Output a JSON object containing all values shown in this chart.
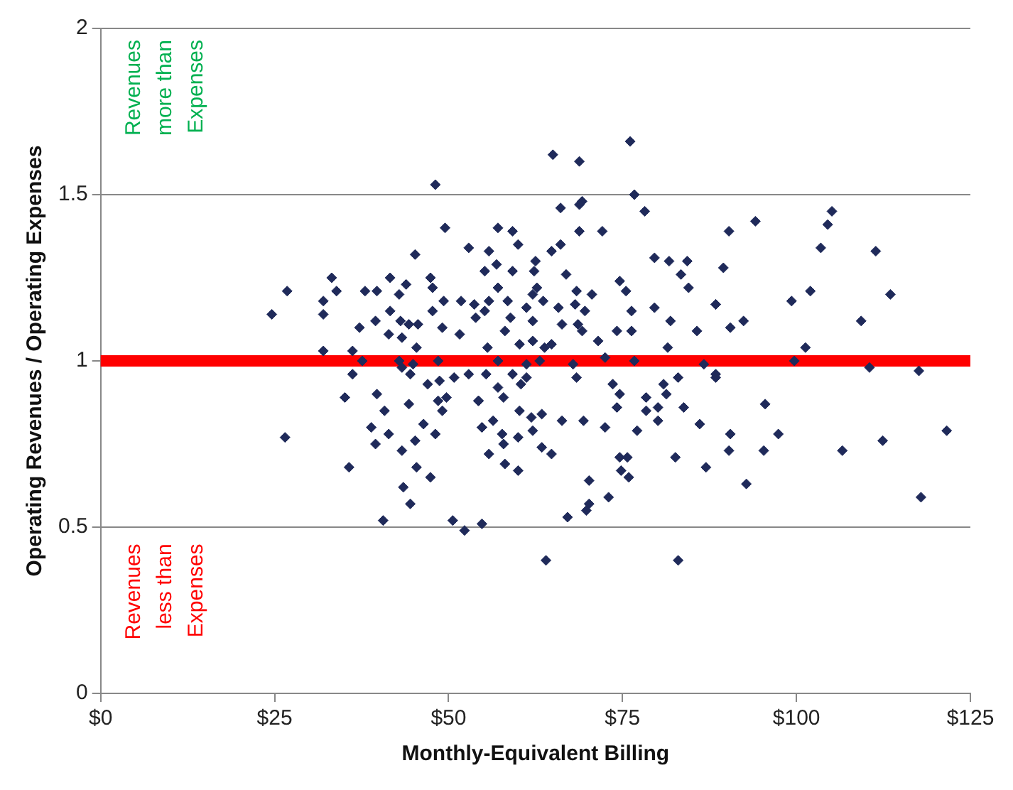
{
  "chart_data": {
    "type": "scatter",
    "xlabel": "Monthly-Equivalent Billing",
    "ylabel": "Operating Revenues / Operating Expenses",
    "annotations": [
      "Revenues more than Expenses",
      "Revenues less than Expenses"
    ],
    "xlim": [
      0,
      125
    ],
    "xticks": [
      {
        "value": 0,
        "label": "$0"
      },
      {
        "value": 25,
        "label": "$25"
      },
      {
        "value": 50,
        "label": "$50"
      },
      {
        "value": 75,
        "label": "$75"
      },
      {
        "value": 100,
        "label": "$100"
      },
      {
        "value": 125,
        "label": "$125"
      }
    ],
    "ylim": [
      0,
      2
    ],
    "yticks": [
      0,
      0.5,
      1,
      1.5,
      2
    ],
    "grid": "y",
    "legend": false,
    "marker": "diamond",
    "ref_lines": [
      {
        "axis": "y",
        "value": 1,
        "color": "#ff0000"
      }
    ],
    "series": [
      {
        "color": "#1f2a5a",
        "x": [
          24.6,
          26.8,
          26.5,
          48.1,
          49.5,
          45.2,
          52.9,
          33.2,
          33.9,
          32.0,
          32.0,
          38.0,
          39.7,
          41.6,
          42.9,
          43.9,
          47.4,
          47.7,
          41.6,
          39.5,
          37.2,
          41.4,
          43.1,
          44.3,
          45.6,
          43.3,
          45.4,
          47.7,
          49.3,
          49.1,
          51.6,
          51.8,
          53.7,
          53.9,
          32.0,
          36.2,
          37.6,
          36.2,
          42.9,
          43.3,
          44.9,
          44.5,
          48.5,
          47.0,
          48.7,
          50.8,
          52.9,
          35.1,
          39.7,
          44.3,
          48.5,
          49.7,
          49.1,
          54.3,
          40.8,
          38.9,
          41.4,
          39.5,
          43.3,
          45.2,
          46.4,
          48.1,
          54.8,
          35.7,
          45.4,
          47.4,
          43.5,
          44.5,
          40.6,
          50.6,
          52.3,
          54.8,
          76.1,
          65.0,
          68.8,
          76.7,
          69.2,
          66.1,
          68.8,
          78.2,
          57.1,
          59.2,
          68.8,
          72.1,
          60.0,
          66.1,
          55.8,
          64.8,
          56.9,
          62.5,
          55.2,
          59.2,
          62.3,
          66.9,
          79.6,
          81.7,
          84.3,
          83.4,
          84.5,
          74.6,
          75.5,
          57.1,
          62.7,
          68.4,
          70.6,
          62.1,
          55.8,
          58.5,
          63.6,
          65.8,
          68.2,
          61.2,
          69.6,
          55.2,
          58.9,
          62.1,
          66.3,
          68.6,
          76.3,
          79.6,
          81.9,
          88.4,
          58.1,
          69.2,
          74.2,
          76.3,
          85.7,
          60.2,
          62.1,
          71.5,
          55.6,
          63.8,
          64.8,
          81.5,
          72.5,
          57.1,
          61.2,
          63.1,
          67.9,
          76.7,
          86.7,
          55.4,
          59.2,
          61.2,
          68.4,
          88.4,
          57.1,
          60.4,
          73.6,
          74.6,
          80.9,
          83.0,
          57.9,
          78.4,
          81.3,
          54.3,
          60.2,
          61.9,
          63.4,
          74.2,
          78.4,
          80.1,
          83.8,
          56.4,
          66.3,
          69.4,
          80.1,
          86.1,
          54.8,
          62.1,
          72.5,
          77.1,
          57.7,
          60.0,
          57.9,
          55.8,
          63.4,
          64.8,
          74.6,
          75.7,
          82.6,
          58.1,
          60.0,
          74.8,
          75.9,
          87.0,
          70.2,
          70.2,
          69.8,
          73.0,
          67.1,
          64.0,
          83.0,
          105.1,
          104.5,
          94.1,
          90.3,
          103.5,
          111.4,
          89.5,
          113.5,
          102.0,
          99.3,
          88.4,
          109.3,
          92.4,
          90.5,
          101.3,
          99.7,
          110.5,
          117.6,
          88.4,
          95.5,
          90.5,
          97.4,
          112.4,
          121.6,
          90.3,
          95.3,
          106.6,
          92.8,
          117.9
        ],
        "values": [
          1.14,
          1.21,
          0.77,
          1.53,
          1.4,
          1.32,
          1.34,
          1.25,
          1.21,
          1.18,
          1.14,
          1.21,
          1.21,
          1.25,
          1.2,
          1.23,
          1.25,
          1.22,
          1.15,
          1.12,
          1.1,
          1.08,
          1.12,
          1.11,
          1.11,
          1.07,
          1.04,
          1.15,
          1.18,
          1.1,
          1.08,
          1.18,
          1.17,
          1.13,
          1.03,
          1.03,
          1.0,
          0.96,
          1.0,
          0.98,
          0.99,
          0.96,
          1.0,
          0.93,
          0.94,
          0.95,
          0.96,
          0.89,
          0.9,
          0.87,
          0.88,
          0.89,
          0.85,
          0.88,
          0.85,
          0.8,
          0.78,
          0.75,
          0.73,
          0.76,
          0.81,
          0.78,
          0.8,
          0.68,
          0.68,
          0.65,
          0.62,
          0.57,
          0.52,
          0.52,
          0.49,
          0.51,
          1.66,
          1.62,
          1.6,
          1.5,
          1.48,
          1.46,
          1.47,
          1.45,
          1.4,
          1.39,
          1.39,
          1.39,
          1.35,
          1.35,
          1.33,
          1.33,
          1.29,
          1.3,
          1.27,
          1.27,
          1.27,
          1.26,
          1.31,
          1.3,
          1.3,
          1.26,
          1.22,
          1.24,
          1.21,
          1.22,
          1.22,
          1.21,
          1.2,
          1.2,
          1.18,
          1.18,
          1.18,
          1.16,
          1.17,
          1.16,
          1.15,
          1.15,
          1.13,
          1.12,
          1.11,
          1.11,
          1.15,
          1.16,
          1.12,
          1.17,
          1.09,
          1.09,
          1.09,
          1.09,
          1.09,
          1.05,
          1.06,
          1.06,
          1.04,
          1.04,
          1.05,
          1.04,
          1.01,
          1.0,
          0.99,
          1.0,
          0.99,
          1.0,
          0.99,
          0.96,
          0.96,
          0.95,
          0.95,
          0.95,
          0.92,
          0.93,
          0.93,
          0.9,
          0.93,
          0.95,
          0.89,
          0.89,
          0.9,
          0.88,
          0.85,
          0.83,
          0.84,
          0.86,
          0.85,
          0.86,
          0.86,
          0.82,
          0.82,
          0.82,
          0.82,
          0.81,
          0.8,
          0.79,
          0.8,
          0.79,
          0.78,
          0.77,
          0.75,
          0.72,
          0.74,
          0.72,
          0.71,
          0.71,
          0.71,
          0.69,
          0.67,
          0.67,
          0.65,
          0.68,
          0.64,
          0.57,
          0.55,
          0.59,
          0.53,
          0.4,
          0.4,
          1.45,
          1.41,
          1.42,
          1.39,
          1.34,
          1.33,
          1.28,
          1.2,
          1.21,
          1.18,
          1.17,
          1.12,
          1.12,
          1.1,
          1.04,
          1.0,
          0.98,
          0.97,
          0.96,
          0.87,
          0.78,
          0.78,
          0.76,
          0.79,
          0.73,
          0.73,
          0.73,
          0.63,
          0.59
        ]
      }
    ]
  }
}
